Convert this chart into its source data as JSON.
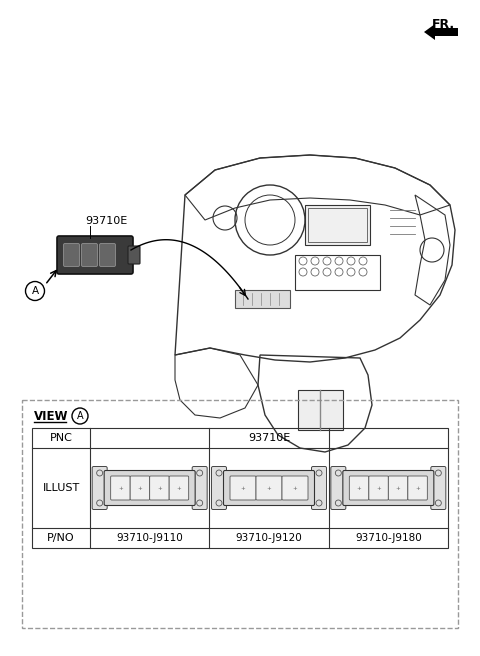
{
  "bg_color": "#ffffff",
  "part_label": "93710E",
  "callout_label": "A",
  "pnc_label": "PNC",
  "illust_label": "ILLUST",
  "pno_label": "P/NO",
  "view_label": "VIEW",
  "part_numbers": [
    "93710-J9110",
    "93710-J9120",
    "93710-J9180"
  ],
  "fr_label": "FR.",
  "line_color": "#333333",
  "dash_color": "#999999",
  "switch_dark": "#3a3a3a",
  "switch_mid": "#666666",
  "switch_light": "#aaaaaa"
}
